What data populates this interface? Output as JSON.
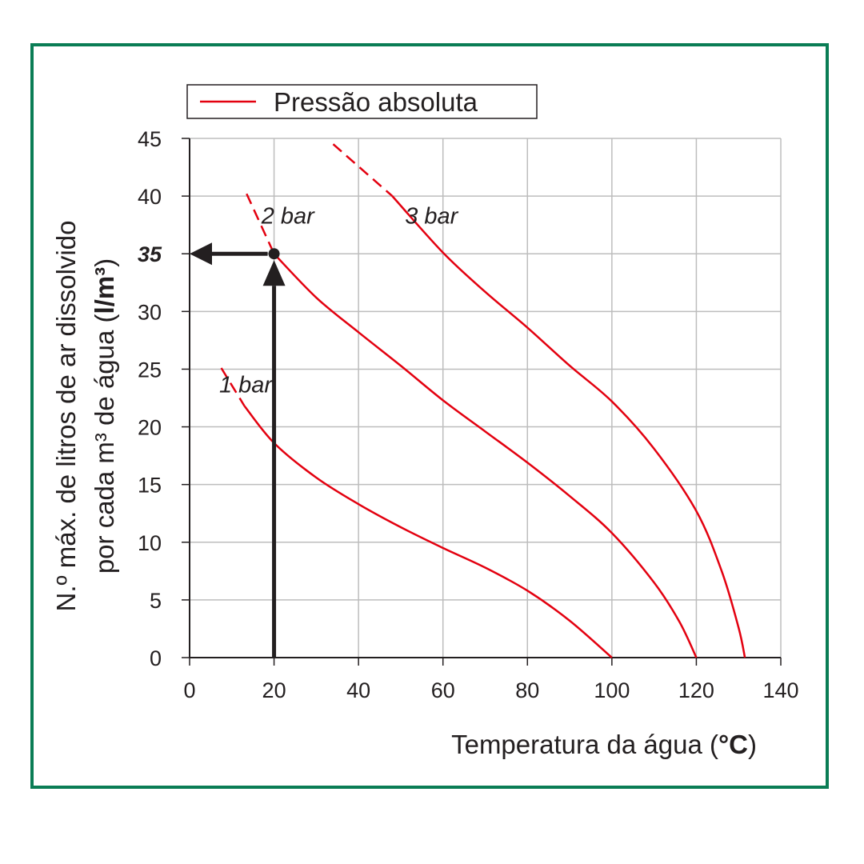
{
  "chart_data": {
    "type": "line",
    "legend": {
      "label": "Pressão absoluta",
      "placement": "top-left"
    },
    "xlabel": {
      "text": "Temperatura da água (",
      "unit": "°C",
      "close": ")"
    },
    "ylabel": {
      "line1": "N.º máx. de litros de ar dissolvido",
      "line2_text": "por cada m³ de água (",
      "line2_unit": "l/m³",
      "line2_close": ")"
    },
    "xlim": [
      0,
      140
    ],
    "ylim": [
      0,
      45
    ],
    "x_ticks": [
      "0",
      "20",
      "40",
      "60",
      "80",
      "100",
      "120",
      "140"
    ],
    "y_ticks": [
      "0",
      "5",
      "10",
      "15",
      "20",
      "25",
      "30",
      "40",
      "45"
    ],
    "grid": true,
    "series": [
      {
        "name": "1 bar",
        "color": "#e3000f",
        "dashed_start": [
          [
            7.5,
            25.1
          ],
          [
            13,
            21.8
          ]
        ],
        "points": [
          [
            13,
            21.8
          ],
          [
            20,
            18.6
          ],
          [
            30,
            15.6
          ],
          [
            40,
            13.3
          ],
          [
            50,
            11.3
          ],
          [
            60,
            9.5
          ],
          [
            70,
            7.8
          ],
          [
            80,
            5.8
          ],
          [
            90,
            3.2
          ],
          [
            100,
            0
          ]
        ]
      },
      {
        "name": "2 bar",
        "color": "#e3000f",
        "dashed_start": [
          [
            13.5,
            40.2
          ],
          [
            20,
            35
          ]
        ],
        "points": [
          [
            20,
            35
          ],
          [
            30,
            31.2
          ],
          [
            40,
            28.2
          ],
          [
            50,
            25.3
          ],
          [
            60,
            22.3
          ],
          [
            70,
            19.6
          ],
          [
            80,
            16.9
          ],
          [
            90,
            14
          ],
          [
            100,
            10.8
          ],
          [
            110,
            6.5
          ],
          [
            116,
            3.1
          ],
          [
            120,
            0
          ]
        ]
      },
      {
        "name": "3 bar",
        "color": "#e3000f",
        "dashed_start": [
          [
            34,
            44.5
          ],
          [
            48,
            40
          ]
        ],
        "points": [
          [
            48,
            40
          ],
          [
            60,
            35.1
          ],
          [
            70,
            31.7
          ],
          [
            80,
            28.6
          ],
          [
            90,
            25.3
          ],
          [
            100,
            22.2
          ],
          [
            110,
            18.1
          ],
          [
            120,
            12.7
          ],
          [
            126,
            7.5
          ],
          [
            130,
            2.6
          ],
          [
            131.5,
            0
          ]
        ]
      }
    ],
    "annotation": {
      "point": [
        20,
        35
      ],
      "highlight_y_label": "35",
      "arrow_color": "#231f20"
    }
  }
}
